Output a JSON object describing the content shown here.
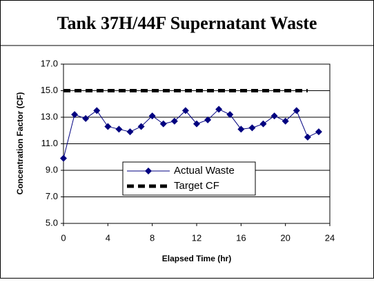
{
  "chart_data": {
    "type": "line",
    "title": "Tank 37H/44F Supernatant Waste",
    "x_label": "Elapsed Time (hr)",
    "y_label": "Concentration Factor (CF)",
    "x": [
      0,
      1,
      2,
      3,
      4,
      5,
      6,
      7,
      8,
      9,
      10,
      11,
      12,
      13,
      14,
      15,
      16,
      17,
      18,
      19,
      20,
      21,
      22,
      23
    ],
    "series": [
      {
        "name": "Actual Waste",
        "color": "#000080",
        "marker": "diamond",
        "values": [
          9.9,
          13.2,
          12.9,
          13.5,
          12.3,
          12.1,
          11.9,
          12.3,
          13.1,
          12.5,
          12.7,
          13.5,
          12.5,
          12.8,
          13.6,
          13.2,
          12.1,
          12.2,
          12.5,
          13.1,
          12.7,
          13.5,
          11.5,
          11.9
        ]
      },
      {
        "name": "Target CF",
        "color": "#000000",
        "dashed": true,
        "values": [
          15,
          15,
          15,
          15,
          15,
          15,
          15,
          15,
          15,
          15,
          15,
          15,
          15,
          15,
          15,
          15,
          15,
          15,
          15,
          15,
          15,
          15,
          15,
          null
        ]
      }
    ],
    "xlim": [
      0,
      24
    ],
    "xticks": [
      0,
      4,
      8,
      12,
      16,
      20,
      24
    ],
    "ylim": [
      5,
      17
    ],
    "yticks": [
      {
        "value": 5,
        "label": "5.0"
      },
      {
        "value": 7,
        "label": "7.0"
      },
      {
        "value": 9,
        "label": "9.0"
      },
      {
        "value": 11,
        "label": "11.0"
      },
      {
        "value": 13,
        "label": "13.0"
      },
      {
        "value": 15,
        "label": "15.0"
      },
      {
        "value": 17,
        "label": "17.0"
      }
    ],
    "grid": true
  }
}
